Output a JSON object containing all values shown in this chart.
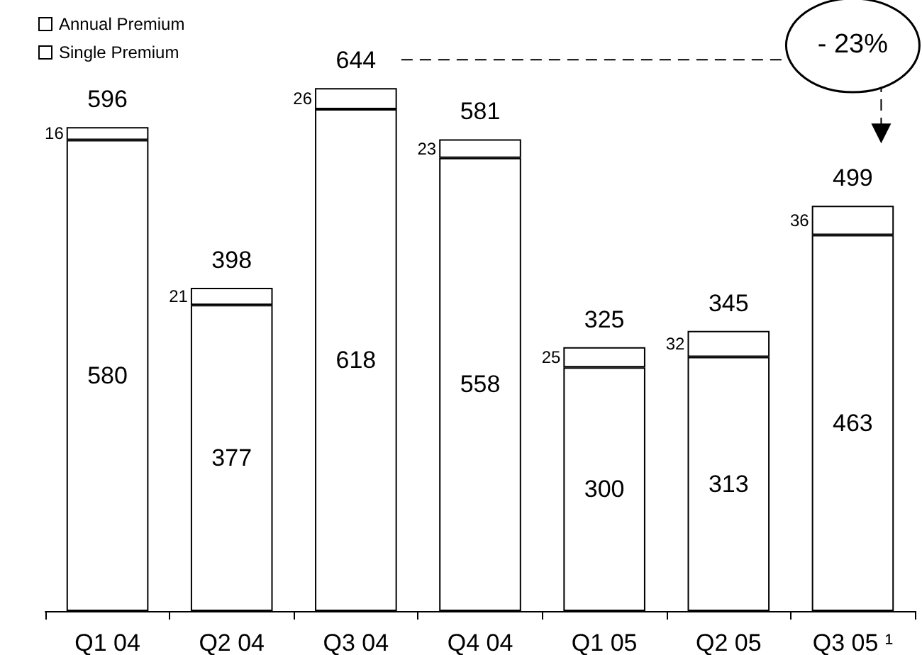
{
  "chart_data": {
    "type": "bar",
    "stacked": true,
    "categories": [
      "Q1 04",
      "Q2 04",
      "Q3 04",
      "Q4 04",
      "Q1 05",
      "Q2 05",
      "Q3 05 ¹"
    ],
    "series": [
      {
        "name": "Annual Premium",
        "color": "#ffffff",
        "values": [
          580,
          377,
          618,
          558,
          300,
          313,
          463
        ]
      },
      {
        "name": "Single Premium",
        "color": "#ffffff",
        "values": [
          16,
          21,
          26,
          23,
          25,
          32,
          36
        ]
      }
    ],
    "data_labels": true,
    "totals": [
      "596",
      "398",
      "644",
      "581",
      "325",
      "345",
      "499"
    ],
    "annotations": [
      "- 23%"
    ],
    "legend": "top left",
    "grid": false
  }
}
